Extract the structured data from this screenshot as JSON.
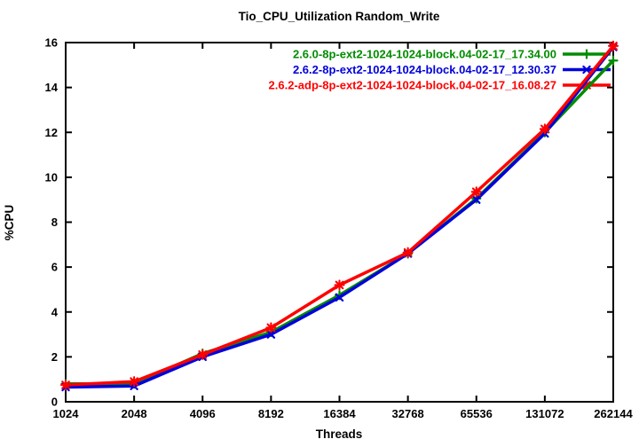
{
  "title": "Tio_CPU_Utilization Random_Write",
  "chart_data": {
    "type": "line",
    "title": "Tio_CPU_Utilization Random_Write",
    "xlabel": "Threads",
    "ylabel": "%CPU",
    "x_scale": "log2-categorical",
    "categories": [
      "1024",
      "2048",
      "4096",
      "8192",
      "16384",
      "32768",
      "65536",
      "131072",
      "262144"
    ],
    "ylim": [
      0,
      16
    ],
    "ytick_step": 2,
    "grid": false,
    "legend_position": "top-right-inside",
    "frame_color": "#000000",
    "background_color": "#ffffff",
    "series": [
      {
        "name": "2.6.0-8p-ext2-1024-1024-block.04-02-17_17.34.00",
        "color": "#008C00",
        "marker": "plus",
        "values": [
          0.8,
          0.8,
          2.15,
          3.1,
          4.75,
          6.6,
          9.05,
          12.0,
          15.2
        ]
      },
      {
        "name": "2.6.2-8p-ext2-1024-1024-block.04-02-17_12.30.37",
        "color": "#0000DC",
        "marker": "x",
        "values": [
          0.65,
          0.7,
          2.0,
          3.0,
          4.65,
          6.6,
          9.0,
          11.95,
          15.8
        ]
      },
      {
        "name": "2.6.2-adp-8p-ext2-1024-1024-block.04-02-17_16.08.27",
        "color": "#FF0000",
        "marker": "star",
        "values": [
          0.75,
          0.9,
          2.1,
          3.3,
          5.2,
          6.65,
          9.35,
          12.15,
          15.85
        ]
      }
    ]
  }
}
